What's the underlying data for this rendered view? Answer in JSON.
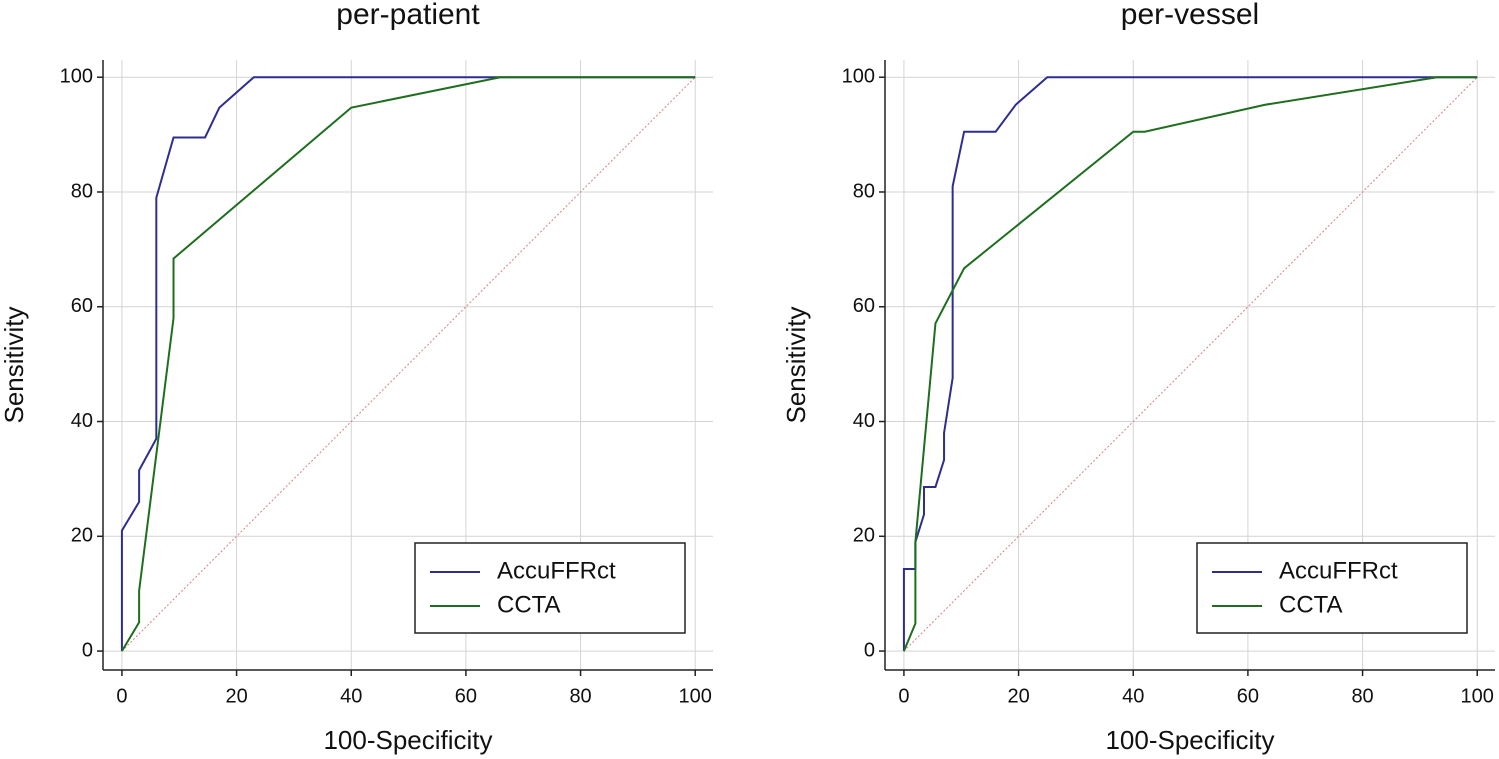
{
  "chart_data": [
    {
      "type": "line",
      "title": "per-patient",
      "xlabel": "100-Specificity",
      "ylabel": "Sensitivity",
      "xlim": [
        -3.3,
        103.1
      ],
      "ylim": [
        -3.3,
        103
      ],
      "xticks": [
        0,
        20,
        40,
        60,
        80,
        100
      ],
      "yticks": [
        0,
        20,
        40,
        60,
        80,
        100
      ],
      "grid": true,
      "legend": "lower right",
      "series": [
        {
          "name": "AccuFFRct",
          "color": "#2e2e8f",
          "x": [
            0,
            0,
            3,
            3,
            6,
            6,
            9,
            14.5,
            17,
            23,
            100
          ],
          "values": [
            0,
            21,
            26,
            31.5,
            37,
            79,
            89.5,
            89.5,
            94.7,
            100,
            100
          ]
        },
        {
          "name": "CCTA",
          "color": "#1f6e1f",
          "x": [
            0,
            3,
            3,
            9,
            9,
            40,
            66,
            100
          ],
          "values": [
            0,
            5,
            10.5,
            58,
            68.4,
            94.7,
            100,
            100
          ]
        }
      ]
    },
    {
      "type": "line",
      "title": "per-vessel",
      "xlabel": "100-Specificity",
      "ylabel": "Sensitivity",
      "xlim": [
        -3.3,
        103.1
      ],
      "ylim": [
        -3.3,
        103
      ],
      "xticks": [
        0,
        20,
        40,
        60,
        80,
        100
      ],
      "yticks": [
        0,
        20,
        40,
        60,
        80,
        100
      ],
      "grid": true,
      "legend": "lower right",
      "series": [
        {
          "name": "AccuFFRct",
          "color": "#2e2e8f",
          "x": [
            0,
            0,
            2,
            2,
            3.5,
            3.5,
            5.5,
            7,
            7,
            8.5,
            8.5,
            10.5,
            16,
            19.5,
            25,
            93,
            100
          ],
          "values": [
            0,
            14.3,
            14.3,
            19,
            23.8,
            28.6,
            28.6,
            33.3,
            38,
            47.6,
            81,
            90.5,
            90.5,
            95.2,
            100,
            100,
            100
          ]
        },
        {
          "name": "CCTA",
          "color": "#1f6e1f",
          "x": [
            0,
            2,
            2,
            5.5,
            10.5,
            40,
            42,
            63,
            93,
            100
          ],
          "values": [
            0,
            4.8,
            19,
            57.1,
            66.7,
            90.5,
            90.5,
            95.2,
            100,
            100
          ]
        }
      ]
    }
  ]
}
